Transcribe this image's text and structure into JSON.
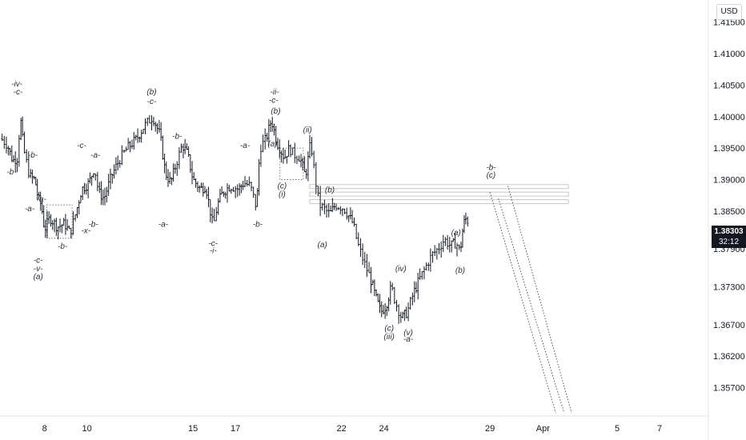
{
  "chart_data": {
    "type": "candlestick",
    "currency": "USD",
    "last_price": "1.38303",
    "countdown": "32:12",
    "y_ticks": [
      "1.41500",
      "1.41000",
      "1.40500",
      "1.40000",
      "1.39500",
      "1.39000",
      "1.38500",
      "1.37900",
      "1.37300",
      "1.36700",
      "1.36200",
      "1.35700"
    ],
    "y_tick_values": [
      1.415,
      1.41,
      1.405,
      1.4,
      1.395,
      1.39,
      1.385,
      1.379,
      1.373,
      1.367,
      1.362,
      1.357
    ],
    "x_ticks": [
      "8",
      "10",
      "15",
      "17",
      "22",
      "24",
      "29",
      "Apr",
      "5",
      "7"
    ],
    "x_tick_index": [
      8,
      10,
      15,
      17,
      22,
      24,
      29,
      31.5,
      35,
      37
    ],
    "ylim": [
      1.3525,
      1.4185
    ],
    "xlim": [
      5.9,
      39.3
    ],
    "price_path": [
      [
        5.95,
        1.3965
      ],
      [
        6.25,
        1.3955
      ],
      [
        6.5,
        1.393
      ],
      [
        6.75,
        1.3935
      ],
      [
        6.85,
        1.4005
      ],
      [
        7.0,
        1.395
      ],
      [
        7.3,
        1.3905
      ],
      [
        7.55,
        1.39
      ],
      [
        7.7,
        1.387
      ],
      [
        7.85,
        1.386
      ],
      [
        8.0,
        1.382
      ],
      [
        8.25,
        1.384
      ],
      [
        8.6,
        1.3825
      ],
      [
        8.95,
        1.383
      ],
      [
        9.2,
        1.3815
      ],
      [
        9.5,
        1.385
      ],
      [
        9.75,
        1.3885
      ],
      [
        10.1,
        1.3895
      ],
      [
        10.35,
        1.392
      ],
      [
        10.55,
        1.388
      ],
      [
        10.8,
        1.387
      ],
      [
        11.15,
        1.3905
      ],
      [
        11.5,
        1.393
      ],
      [
        11.9,
        1.395
      ],
      [
        12.35,
        1.3965
      ],
      [
        12.7,
        1.3985
      ],
      [
        13.1,
        1.4
      ],
      [
        13.45,
        1.397
      ],
      [
        13.7,
        1.391
      ],
      [
        13.95,
        1.3895
      ],
      [
        14.2,
        1.3925
      ],
      [
        14.5,
        1.3955
      ],
      [
        14.75,
        1.394
      ],
      [
        15.0,
        1.39
      ],
      [
        15.35,
        1.3885
      ],
      [
        15.6,
        1.389
      ],
      [
        15.95,
        1.3825
      ],
      [
        16.15,
        1.386
      ],
      [
        16.4,
        1.388
      ],
      [
        16.75,
        1.389
      ],
      [
        17.15,
        1.3885
      ],
      [
        17.4,
        1.3895
      ],
      [
        17.7,
        1.389
      ],
      [
        18.0,
        1.3855
      ],
      [
        18.15,
        1.395
      ],
      [
        18.45,
        1.3965
      ],
      [
        18.7,
        1.3995
      ],
      [
        18.95,
        1.396
      ],
      [
        19.3,
        1.3935
      ],
      [
        19.55,
        1.395
      ],
      [
        19.75,
        1.394
      ],
      [
        20.05,
        1.3935
      ],
      [
        20.3,
        1.3905
      ],
      [
        20.55,
        1.396
      ],
      [
        20.75,
        1.3905
      ],
      [
        20.95,
        1.386
      ],
      [
        21.15,
        1.3855
      ],
      [
        21.45,
        1.3845
      ],
      [
        21.7,
        1.386
      ],
      [
        22.1,
        1.3855
      ],
      [
        22.3,
        1.3845
      ],
      [
        22.55,
        1.383
      ],
      [
        22.75,
        1.38
      ],
      [
        23.05,
        1.377
      ],
      [
        23.35,
        1.3745
      ],
      [
        23.6,
        1.3715
      ],
      [
        23.85,
        1.369
      ],
      [
        24.1,
        1.37
      ],
      [
        24.35,
        1.373
      ],
      [
        24.55,
        1.3705
      ],
      [
        24.85,
        1.368
      ],
      [
        25.1,
        1.369
      ],
      [
        25.4,
        1.372
      ],
      [
        25.65,
        1.374
      ],
      [
        25.95,
        1.376
      ],
      [
        26.25,
        1.378
      ],
      [
        26.55,
        1.379
      ],
      [
        26.85,
        1.3805
      ],
      [
        27.15,
        1.3795
      ],
      [
        27.4,
        1.38
      ],
      [
        27.6,
        1.3785
      ],
      [
        27.75,
        1.383
      ],
      [
        27.9,
        1.384
      ],
      [
        28.0,
        1.383
      ]
    ],
    "wave_labels": [
      {
        "text": "-iv-",
        "x": 6.7,
        "y": 1.4048
      },
      {
        "text": "-c-",
        "x": 6.75,
        "y": 1.4035
      },
      {
        "text": "-b-",
        "x": 6.45,
        "y": 1.3908
      },
      {
        "text": "-b-",
        "x": 7.45,
        "y": 1.3935
      },
      {
        "text": "-a-",
        "x": 7.3,
        "y": 1.385
      },
      {
        "text": "-a-",
        "x": 7.85,
        "y": 1.3865
      },
      {
        "text": "-c-",
        "x": 7.7,
        "y": 1.3768
      },
      {
        "text": "-v-",
        "x": 7.7,
        "y": 1.3755
      },
      {
        "text": "(a)",
        "x": 7.7,
        "y": 1.3742
      },
      {
        "text": "-b-",
        "x": 8.85,
        "y": 1.379
      },
      {
        "text": "-x-",
        "x": 9.95,
        "y": 1.3815
      },
      {
        "text": "-b-",
        "x": 10.3,
        "y": 1.3825
      },
      {
        "text": "-c-",
        "x": 9.75,
        "y": 1.395
      },
      {
        "text": "-a-",
        "x": 10.4,
        "y": 1.3935
      },
      {
        "text": "(b)",
        "x": 13.05,
        "y": 1.4035
      },
      {
        "text": "-c-",
        "x": 13.05,
        "y": 1.402
      },
      {
        "text": "-a-",
        "x": 13.6,
        "y": 1.3825
      },
      {
        "text": "-b-",
        "x": 14.25,
        "y": 1.3965
      },
      {
        "text": "-c-",
        "x": 15.95,
        "y": 1.3795
      },
      {
        "text": "-i-",
        "x": 15.95,
        "y": 1.3783
      },
      {
        "text": "-a-",
        "x": 17.45,
        "y": 1.395
      },
      {
        "text": "-b-",
        "x": 18.05,
        "y": 1.3825
      },
      {
        "text": "-ii-",
        "x": 18.85,
        "y": 1.4035
      },
      {
        "text": "-c-",
        "x": 18.8,
        "y": 1.4022
      },
      {
        "text": "(b)",
        "x": 18.9,
        "y": 1.4005
      },
      {
        "text": "(a)",
        "x": 18.75,
        "y": 1.3953
      },
      {
        "text": "(ii)",
        "x": 20.4,
        "y": 1.3975
      },
      {
        "text": "(c)",
        "x": 19.2,
        "y": 1.3886
      },
      {
        "text": "(i)",
        "x": 19.2,
        "y": 1.3873
      },
      {
        "text": "(b)",
        "x": 21.45,
        "y": 1.388
      },
      {
        "text": "(a)",
        "x": 21.1,
        "y": 1.3793
      },
      {
        "text": "(iv)",
        "x": 24.8,
        "y": 1.3755
      },
      {
        "text": "(c)",
        "x": 24.25,
        "y": 1.366
      },
      {
        "text": "(iii)",
        "x": 24.25,
        "y": 1.3647
      },
      {
        "text": "(v)",
        "x": 25.15,
        "y": 1.3653
      },
      {
        "text": "-a-",
        "x": 25.15,
        "y": 1.3643
      },
      {
        "text": "(a)",
        "x": 27.4,
        "y": 1.3812
      },
      {
        "text": "(b)",
        "x": 27.6,
        "y": 1.3752
      },
      {
        "text": "-b-",
        "x": 29.05,
        "y": 1.3915
      },
      {
        "text": "(c)",
        "x": 29.05,
        "y": 1.3903
      }
    ],
    "resistance_zone": {
      "x_from": 20.5,
      "x_to": 32.7,
      "levels": [
        1.3889,
        1.3877,
        1.3865
      ]
    },
    "projection_lines": [
      [
        [
          29.0,
          1.388
        ],
        [
          32.1,
          1.353
        ]
      ],
      [
        [
          29.4,
          1.387
        ],
        [
          32.5,
          1.353
        ]
      ],
      [
        [
          29.85,
          1.389
        ],
        [
          32.85,
          1.353
        ]
      ]
    ],
    "boxes": [
      {
        "x0": 8.1,
        "x1": 9.3,
        "y0": 1.386,
        "y1": 1.3807
      },
      {
        "x0": 19.1,
        "x1": 20.2,
        "y0": 1.395,
        "y1": 1.39
      }
    ]
  }
}
